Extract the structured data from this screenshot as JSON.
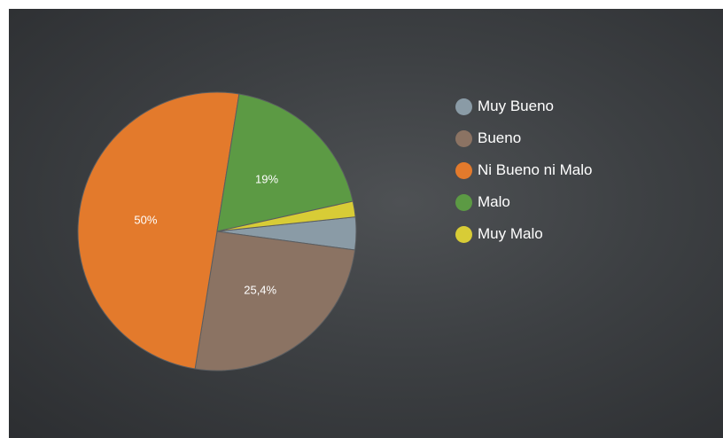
{
  "chart_data": {
    "type": "pie",
    "slices": [
      {
        "name": "Muy Bueno",
        "value": 3.8,
        "color": "#8a9ba6",
        "label": ""
      },
      {
        "name": "Bueno",
        "value": 25.4,
        "color": "#8b7363",
        "label": "25,4%"
      },
      {
        "name": "Ni Bueno ni Malo",
        "value": 50,
        "color": "#e37a2c",
        "label": "50%"
      },
      {
        "name": "Malo",
        "value": 19,
        "color": "#5c9a44",
        "label": "19%"
      },
      {
        "name": "Muy Malo",
        "value": 1.8,
        "color": "#d8cc36",
        "label": ""
      }
    ],
    "legend_position": "right"
  }
}
